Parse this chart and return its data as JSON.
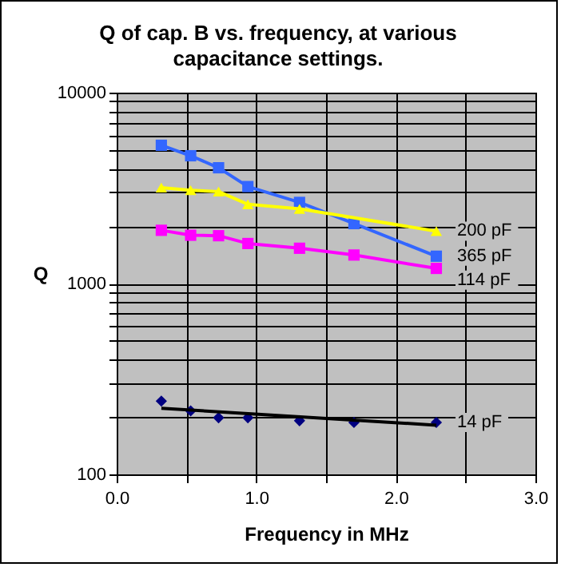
{
  "chart_data": {
    "type": "line",
    "title": "Q of cap. B vs. frequency, at various capacitance settings.",
    "xlabel": "Frequency in MHz",
    "ylabel": "Q",
    "log": "y",
    "grid": true,
    "xlim": [
      0,
      3
    ],
    "xticks": [
      {
        "value": 0,
        "label": "0.0"
      },
      {
        "value": 0.5,
        "label": null
      },
      {
        "value": 1,
        "label": "1.0"
      },
      {
        "value": 1.5,
        "label": null
      },
      {
        "value": 2,
        "label": "2.0"
      },
      {
        "value": 2.5,
        "label": null
      },
      {
        "value": 3,
        "label": "3.0"
      }
    ],
    "ylim": [
      100,
      10000
    ],
    "yticks": [
      100,
      {
        "value": 200,
        "label": null
      },
      {
        "value": 300,
        "label": null
      },
      {
        "value": 400,
        "label": null
      },
      {
        "value": 500,
        "label": null
      },
      {
        "value": 600,
        "label": null
      },
      {
        "value": 700,
        "label": null
      },
      {
        "value": 800,
        "label": null
      },
      {
        "value": 900,
        "label": null
      },
      1000,
      {
        "value": 2000,
        "label": null
      },
      {
        "value": 3000,
        "label": null
      },
      {
        "value": 4000,
        "label": null
      },
      {
        "value": 5000,
        "label": null
      },
      {
        "value": 6000,
        "label": null
      },
      {
        "value": 7000,
        "label": null
      },
      {
        "value": 8000,
        "label": null
      },
      {
        "value": 9000,
        "label": null
      },
      10000
    ],
    "series": [
      {
        "name": "365 pF",
        "marker": "square",
        "color": "#3366ff",
        "x": [
          0.32,
          0.53,
          0.73,
          0.94,
          1.31,
          1.7,
          2.29
        ],
        "values": [
          5300,
          4670,
          4040,
          3220,
          2660,
          2060,
          1390
        ]
      },
      {
        "name": "200 pF",
        "marker": "triangle",
        "color": "#ffff00",
        "x": [
          0.32,
          0.53,
          0.73,
          0.94,
          1.31,
          2.29
        ],
        "values": [
          3180,
          3080,
          3030,
          2600,
          2460,
          1880
        ]
      },
      {
        "name": "114 pF",
        "marker": "square",
        "color": "#ff00ff",
        "x": [
          0.32,
          0.53,
          0.73,
          0.94,
          1.31,
          1.7,
          2.29
        ],
        "values": [
          1900,
          1790,
          1780,
          1620,
          1530,
          1410,
          1200
        ]
      },
      {
        "name": "14 pF",
        "type": "scatter",
        "marker": "diamond",
        "color": "#000080",
        "x": [
          0.32,
          0.53,
          0.73,
          0.94,
          1.31,
          1.7,
          2.29
        ],
        "values": [
          242,
          215,
          198,
          198,
          191,
          187,
          187
        ]
      },
      {
        "type": "line",
        "marker": "none",
        "color": "#000000",
        "x": [
          0.32,
          2.29
        ],
        "values": [
          222,
          181
        ]
      }
    ]
  }
}
